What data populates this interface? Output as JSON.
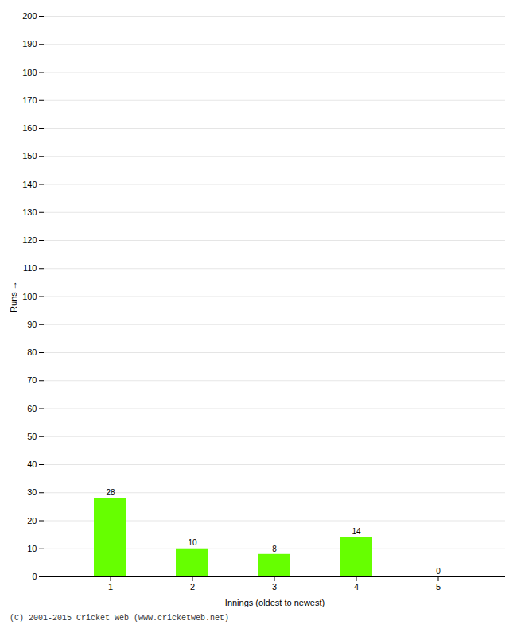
{
  "chart_data": {
    "type": "bar",
    "xlabel": "Innings (oldest to newest)",
    "ylabel": "Runs",
    "categories": [
      1,
      2,
      3,
      4,
      5
    ],
    "values": [
      28,
      10,
      8,
      14,
      0
    ],
    "color": "#66ff00",
    "ylim": [
      0,
      200
    ],
    "yticks": [
      0,
      10,
      20,
      30,
      40,
      50,
      60,
      70,
      80,
      90,
      100,
      110,
      120,
      130,
      140,
      150,
      160,
      170,
      180,
      190,
      200
    ],
    "grid": true,
    "data_labels": true,
    "caption": "(C) 2001-2015 Cricket Web (www.cricketweb.net)"
  }
}
